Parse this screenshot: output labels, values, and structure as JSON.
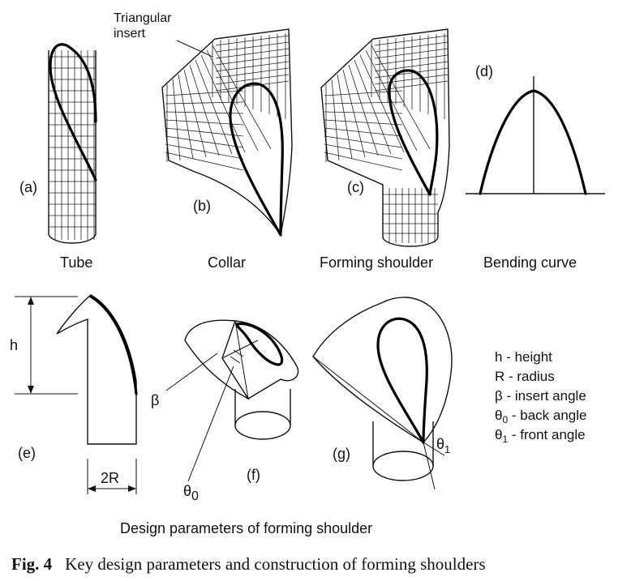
{
  "panels": {
    "a": {
      "tag": "(a)",
      "caption": "Tube"
    },
    "b": {
      "tag": "(b)",
      "caption": "Collar",
      "callout": [
        "Triangular",
        "insert"
      ]
    },
    "c": {
      "tag": "(c)",
      "caption": "Forming shoulder"
    },
    "d": {
      "tag": "(d)",
      "caption": "Bending curve"
    },
    "e": {
      "tag": "(e)",
      "height_label": "h",
      "width_label": "2R",
      "angle_label": "β"
    },
    "f": {
      "tag": "(f)",
      "angle_label": "θ",
      "angle_sub": "0"
    },
    "g": {
      "tag": "(g)",
      "angle_label": "θ",
      "angle_sub": "1"
    }
  },
  "legend": [
    {
      "sym": "h",
      "sub": "",
      "text": " - height"
    },
    {
      "sym": "R",
      "sub": "",
      "text": " - radius"
    },
    {
      "sym": "β",
      "sub": "",
      "text": " - insert angle"
    },
    {
      "sym": "θ",
      "sub": "0",
      "text": " - back angle"
    },
    {
      "sym": "θ",
      "sub": "1",
      "text": " - front angle"
    }
  ],
  "subtitle": "Design parameters of forming shoulder",
  "caption": {
    "label": "Fig. 4",
    "text": "Key design parameters and construction of forming shoulders"
  }
}
